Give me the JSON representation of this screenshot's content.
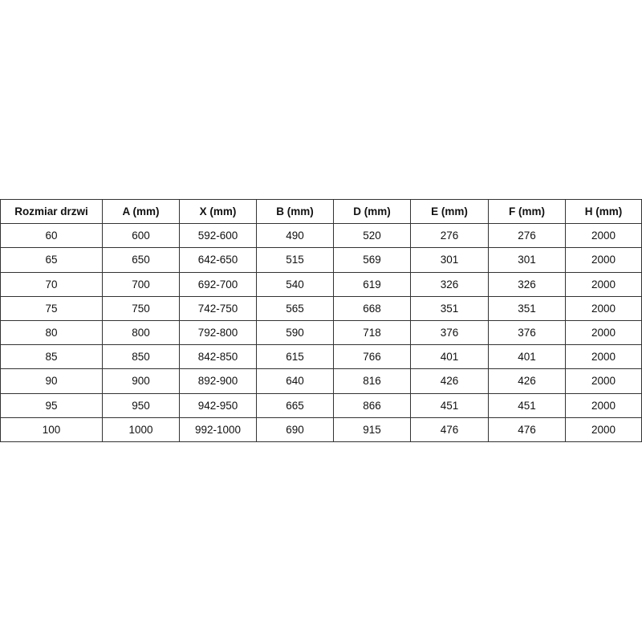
{
  "table": {
    "headers": [
      "Rozmiar drzwi",
      "A (mm)",
      "X (mm)",
      "B (mm)",
      "D (mm)",
      "E (mm)",
      "F (mm)",
      "H (mm)"
    ],
    "rows": [
      [
        "60",
        "600",
        "592-600",
        "490",
        "520",
        "276",
        "276",
        "2000"
      ],
      [
        "65",
        "650",
        "642-650",
        "515",
        "569",
        "301",
        "301",
        "2000"
      ],
      [
        "70",
        "700",
        "692-700",
        "540",
        "619",
        "326",
        "326",
        "2000"
      ],
      [
        "75",
        "750",
        "742-750",
        "565",
        "668",
        "351",
        "351",
        "2000"
      ],
      [
        "80",
        "800",
        "792-800",
        "590",
        "718",
        "376",
        "376",
        "2000"
      ],
      [
        "85",
        "850",
        "842-850",
        "615",
        "766",
        "401",
        "401",
        "2000"
      ],
      [
        "90",
        "900",
        "892-900",
        "640",
        "816",
        "426",
        "426",
        "2000"
      ],
      [
        "95",
        "950",
        "942-950",
        "665",
        "866",
        "451",
        "451",
        "2000"
      ],
      [
        "100",
        "1000",
        "992-1000",
        "690",
        "915",
        "476",
        "476",
        "2000"
      ]
    ]
  }
}
